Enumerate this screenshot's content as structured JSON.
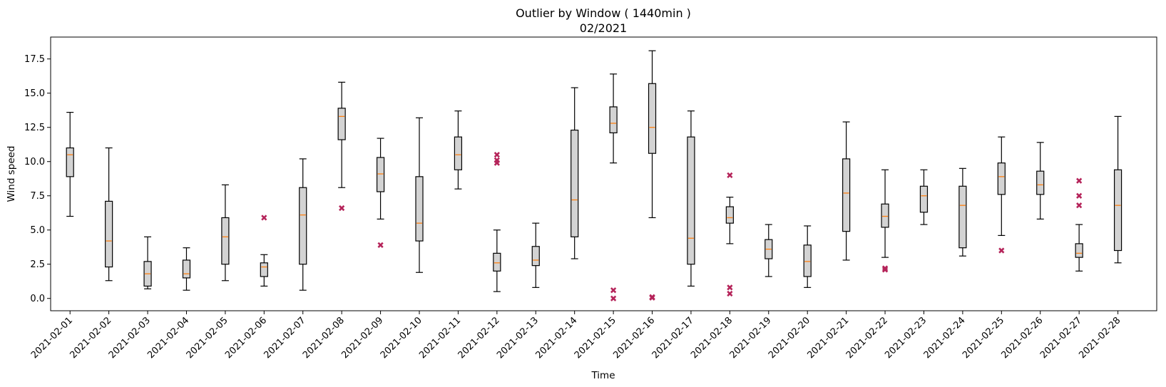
{
  "chart_data": {
    "type": "box",
    "title": "Outlier by Window ( 1440min )",
    "subtitle": "02/2021",
    "xlabel": "Time",
    "ylabel": "Wind speed",
    "ylim": [
      -0.9,
      19.1
    ],
    "yticks": [
      "0.0",
      "2.5",
      "5.0",
      "7.5",
      "10.0",
      "12.5",
      "15.0",
      "17.5"
    ],
    "ytick_values": [
      0,
      2.5,
      5,
      7.5,
      10,
      12.5,
      15,
      17.5
    ],
    "grid": false,
    "colors": {
      "box_fill": "#d3d3d3",
      "median": "#ff7f0e",
      "outlier": "#b5245a",
      "line": "#000000"
    },
    "boxes": [
      {
        "label": "2021-02-01",
        "whislo": 6.0,
        "q1": 8.9,
        "med": 10.5,
        "q3": 11.0,
        "whishi": 13.6,
        "fliers": []
      },
      {
        "label": "2021-02-02",
        "whislo": 1.3,
        "q1": 2.3,
        "med": 4.2,
        "q3": 7.1,
        "whishi": 11.0,
        "fliers": []
      },
      {
        "label": "2021-02-03",
        "whislo": 0.7,
        "q1": 0.9,
        "med": 1.8,
        "q3": 2.7,
        "whishi": 4.5,
        "fliers": []
      },
      {
        "label": "2021-02-04",
        "whislo": 0.6,
        "q1": 1.5,
        "med": 1.8,
        "q3": 2.8,
        "whishi": 3.7,
        "fliers": []
      },
      {
        "label": "2021-02-05",
        "whislo": 1.3,
        "q1": 2.5,
        "med": 4.5,
        "q3": 5.9,
        "whishi": 8.3,
        "fliers": []
      },
      {
        "label": "2021-02-06",
        "whislo": 0.9,
        "q1": 1.6,
        "med": 2.3,
        "q3": 2.6,
        "whishi": 3.2,
        "fliers": [
          5.9
        ]
      },
      {
        "label": "2021-02-07",
        "whislo": 0.6,
        "q1": 2.5,
        "med": 6.1,
        "q3": 8.1,
        "whishi": 10.2,
        "fliers": []
      },
      {
        "label": "2021-02-08",
        "whislo": 8.1,
        "q1": 11.6,
        "med": 13.3,
        "q3": 13.9,
        "whishi": 15.8,
        "fliers": [
          6.6
        ]
      },
      {
        "label": "2021-02-09",
        "whislo": 5.8,
        "q1": 7.8,
        "med": 9.1,
        "q3": 10.3,
        "whishi": 11.7,
        "fliers": [
          3.9
        ]
      },
      {
        "label": "2021-02-10",
        "whislo": 1.9,
        "q1": 4.2,
        "med": 5.5,
        "q3": 8.9,
        "whishi": 13.2,
        "fliers": []
      },
      {
        "label": "2021-02-11",
        "whislo": 8.0,
        "q1": 9.4,
        "med": 10.5,
        "q3": 11.8,
        "whishi": 13.7,
        "fliers": []
      },
      {
        "label": "2021-02-12",
        "whislo": 0.5,
        "q1": 2.0,
        "med": 2.6,
        "q3": 3.3,
        "whishi": 5.0,
        "fliers": [
          10.5,
          10.1,
          9.9
        ]
      },
      {
        "label": "2021-02-13",
        "whislo": 0.8,
        "q1": 2.4,
        "med": 2.8,
        "q3": 3.8,
        "whishi": 5.5,
        "fliers": []
      },
      {
        "label": "2021-02-14",
        "whislo": 2.9,
        "q1": 4.5,
        "med": 7.2,
        "q3": 12.3,
        "whishi": 15.4,
        "fliers": []
      },
      {
        "label": "2021-02-15",
        "whislo": 9.9,
        "q1": 12.1,
        "med": 12.8,
        "q3": 14.0,
        "whishi": 16.4,
        "fliers": [
          0.6,
          0.0
        ]
      },
      {
        "label": "2021-02-16",
        "whislo": 5.9,
        "q1": 10.6,
        "med": 12.5,
        "q3": 15.7,
        "whishi": 18.1,
        "fliers": [
          0.1,
          0.05
        ]
      },
      {
        "label": "2021-02-17",
        "whislo": 0.9,
        "q1": 2.5,
        "med": 4.4,
        "q3": 11.8,
        "whishi": 13.7,
        "fliers": []
      },
      {
        "label": "2021-02-18",
        "whislo": 4.0,
        "q1": 5.5,
        "med": 5.9,
        "q3": 6.7,
        "whishi": 7.4,
        "fliers": [
          9.0,
          0.8,
          0.35
        ]
      },
      {
        "label": "2021-02-19",
        "whislo": 1.6,
        "q1": 2.9,
        "med": 3.6,
        "q3": 4.3,
        "whishi": 5.4,
        "fliers": []
      },
      {
        "label": "2021-02-20",
        "whislo": 0.8,
        "q1": 1.6,
        "med": 2.7,
        "q3": 3.9,
        "whishi": 5.3,
        "fliers": []
      },
      {
        "label": "2021-02-21",
        "whislo": 2.8,
        "q1": 4.9,
        "med": 7.7,
        "q3": 10.2,
        "whishi": 12.9,
        "fliers": []
      },
      {
        "label": "2021-02-22",
        "whislo": 3.0,
        "q1": 5.2,
        "med": 6.0,
        "q3": 6.9,
        "whishi": 9.4,
        "fliers": [
          2.2,
          2.1
        ]
      },
      {
        "label": "2021-02-23",
        "whislo": 5.4,
        "q1": 6.3,
        "med": 7.5,
        "q3": 8.2,
        "whishi": 9.4,
        "fliers": []
      },
      {
        "label": "2021-02-24",
        "whislo": 3.1,
        "q1": 3.7,
        "med": 6.8,
        "q3": 8.2,
        "whishi": 9.5,
        "fliers": []
      },
      {
        "label": "2021-02-25",
        "whislo": 4.6,
        "q1": 7.6,
        "med": 8.9,
        "q3": 9.9,
        "whishi": 11.8,
        "fliers": [
          3.5
        ]
      },
      {
        "label": "2021-02-26",
        "whislo": 5.8,
        "q1": 7.6,
        "med": 8.3,
        "q3": 9.3,
        "whishi": 11.4,
        "fliers": []
      },
      {
        "label": "2021-02-27",
        "whislo": 2.0,
        "q1": 3.0,
        "med": 3.3,
        "q3": 4.0,
        "whishi": 5.4,
        "fliers": [
          8.6,
          7.5,
          6.8
        ]
      },
      {
        "label": "2021-02-28",
        "whislo": 2.6,
        "q1": 3.5,
        "med": 6.8,
        "q3": 9.4,
        "whishi": 13.3,
        "fliers": []
      }
    ]
  }
}
